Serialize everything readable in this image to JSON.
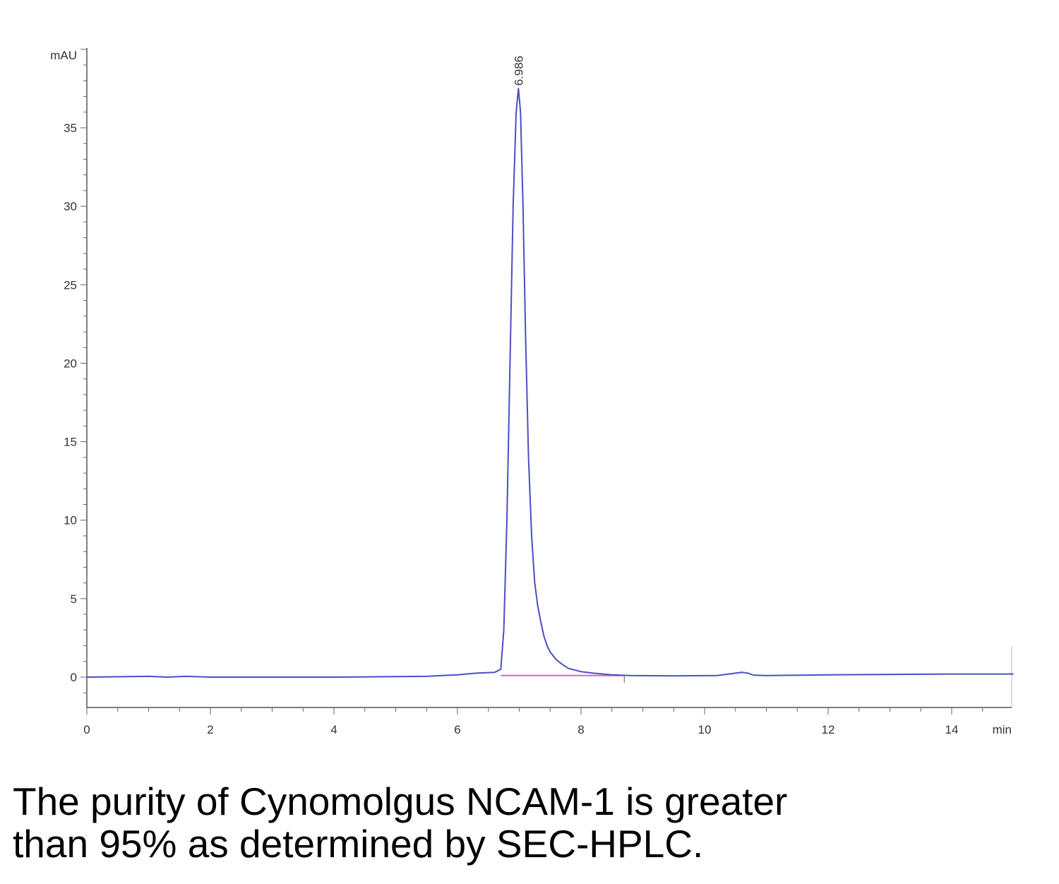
{
  "chart_data": {
    "type": "line",
    "title": "",
    "xlabel": "",
    "ylabel": "",
    "x_unit": "min",
    "y_unit": "mAU",
    "xlim": [
      0,
      15
    ],
    "ylim": [
      -2,
      40
    ],
    "x_ticks": [
      0,
      2,
      4,
      6,
      8,
      10,
      12,
      14
    ],
    "y_ticks": [
      0,
      5,
      10,
      15,
      20,
      25,
      30,
      35
    ],
    "grid": false,
    "legend": "none",
    "series": [
      {
        "color": "#4b4fc4",
        "x": [
          0,
          1.0,
          1.3,
          1.6,
          2.0,
          4.0,
          5.5,
          6.0,
          6.3,
          6.6,
          6.7,
          6.75,
          6.8,
          6.85,
          6.9,
          6.95,
          6.986,
          7.02,
          7.06,
          7.1,
          7.15,
          7.2,
          7.25,
          7.3,
          7.35,
          7.4,
          7.45,
          7.5,
          7.6,
          7.7,
          7.8,
          8.0,
          8.2,
          8.5,
          8.8,
          9.5,
          10.2,
          10.5,
          10.6,
          10.7,
          10.8,
          11.0,
          12.0,
          14.0,
          15.0
        ],
        "y": [
          0,
          0.05,
          0,
          0.05,
          0,
          0,
          0.05,
          0.15,
          0.25,
          0.3,
          0.5,
          3,
          10,
          20,
          30,
          36,
          37.5,
          36,
          30,
          22,
          14,
          9,
          6,
          4.5,
          3.5,
          2.6,
          2,
          1.6,
          1.1,
          0.8,
          0.55,
          0.35,
          0.25,
          0.15,
          0.1,
          0.08,
          0.1,
          0.25,
          0.3,
          0.25,
          0.12,
          0.1,
          0.15,
          0.2,
          0.2
        ]
      }
    ],
    "baseline": {
      "color": "#e060c0",
      "x": [
        6.7,
        8.7
      ],
      "y": [
        0.1,
        0.1
      ]
    },
    "annotations": [
      {
        "text": "6.986",
        "x": 6.986,
        "y": 37.5
      }
    ]
  },
  "caption": {
    "line1": "The purity of Cynomolgus NCAM-1 is greater",
    "line2": "than 95% as determined by SEC-HPLC."
  }
}
